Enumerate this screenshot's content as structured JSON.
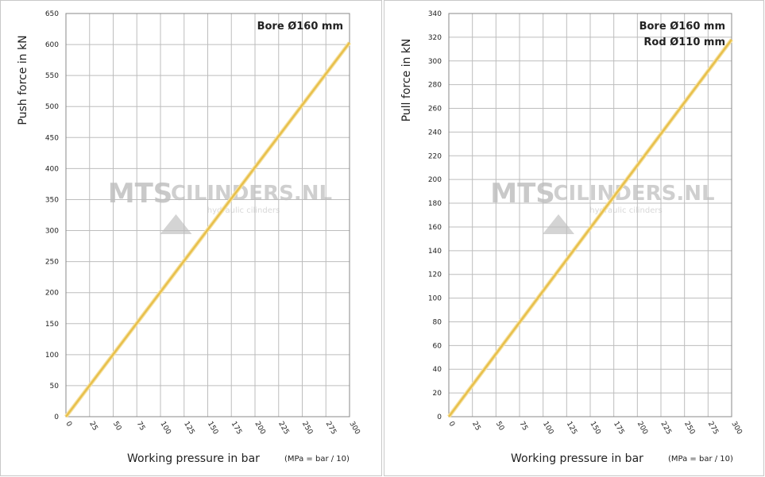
{
  "chart_data": [
    {
      "type": "line",
      "y_label": "Push force in kN",
      "x_label": "Working pressure in bar",
      "x_label_note": "(MPa = bar / 10)",
      "annotations": [
        "Bore Ø160 mm"
      ],
      "watermark": [
        "MTS",
        "CILINDERS.NL",
        "hydraulic cilinders"
      ],
      "x": [
        0,
        300
      ],
      "series": [
        {
          "name": "Push force",
          "color": "#e8c04c",
          "values": [
            0,
            603
          ]
        }
      ],
      "xlim": [
        0,
        300
      ],
      "xticks": [
        0,
        25,
        50,
        75,
        100,
        125,
        150,
        175,
        200,
        225,
        250,
        275,
        300
      ],
      "ylim": [
        0,
        650
      ],
      "yticks": [
        0,
        50,
        100,
        150,
        200,
        250,
        300,
        350,
        400,
        450,
        500,
        550,
        600,
        650
      ],
      "grid": true
    },
    {
      "type": "line",
      "y_label": "Pull force in kN",
      "x_label": "Working pressure in bar",
      "x_label_note": "(MPa = bar / 10)",
      "annotations": [
        "Bore Ø160 mm",
        "Rod Ø110 mm"
      ],
      "watermark": [
        "MTS",
        "CILINDERS.NL",
        "hydraulic cilinders"
      ],
      "x": [
        0,
        300
      ],
      "series": [
        {
          "name": "Pull force",
          "color": "#e8c04c",
          "values": [
            0,
            318
          ]
        }
      ],
      "xlim": [
        0,
        300
      ],
      "xticks": [
        0,
        25,
        50,
        75,
        100,
        125,
        150,
        175,
        200,
        225,
        250,
        275,
        300
      ],
      "ylim": [
        0,
        340
      ],
      "yticks": [
        0,
        20,
        40,
        60,
        80,
        100,
        120,
        140,
        160,
        180,
        200,
        220,
        240,
        260,
        280,
        300,
        320,
        340
      ],
      "grid": true
    }
  ]
}
